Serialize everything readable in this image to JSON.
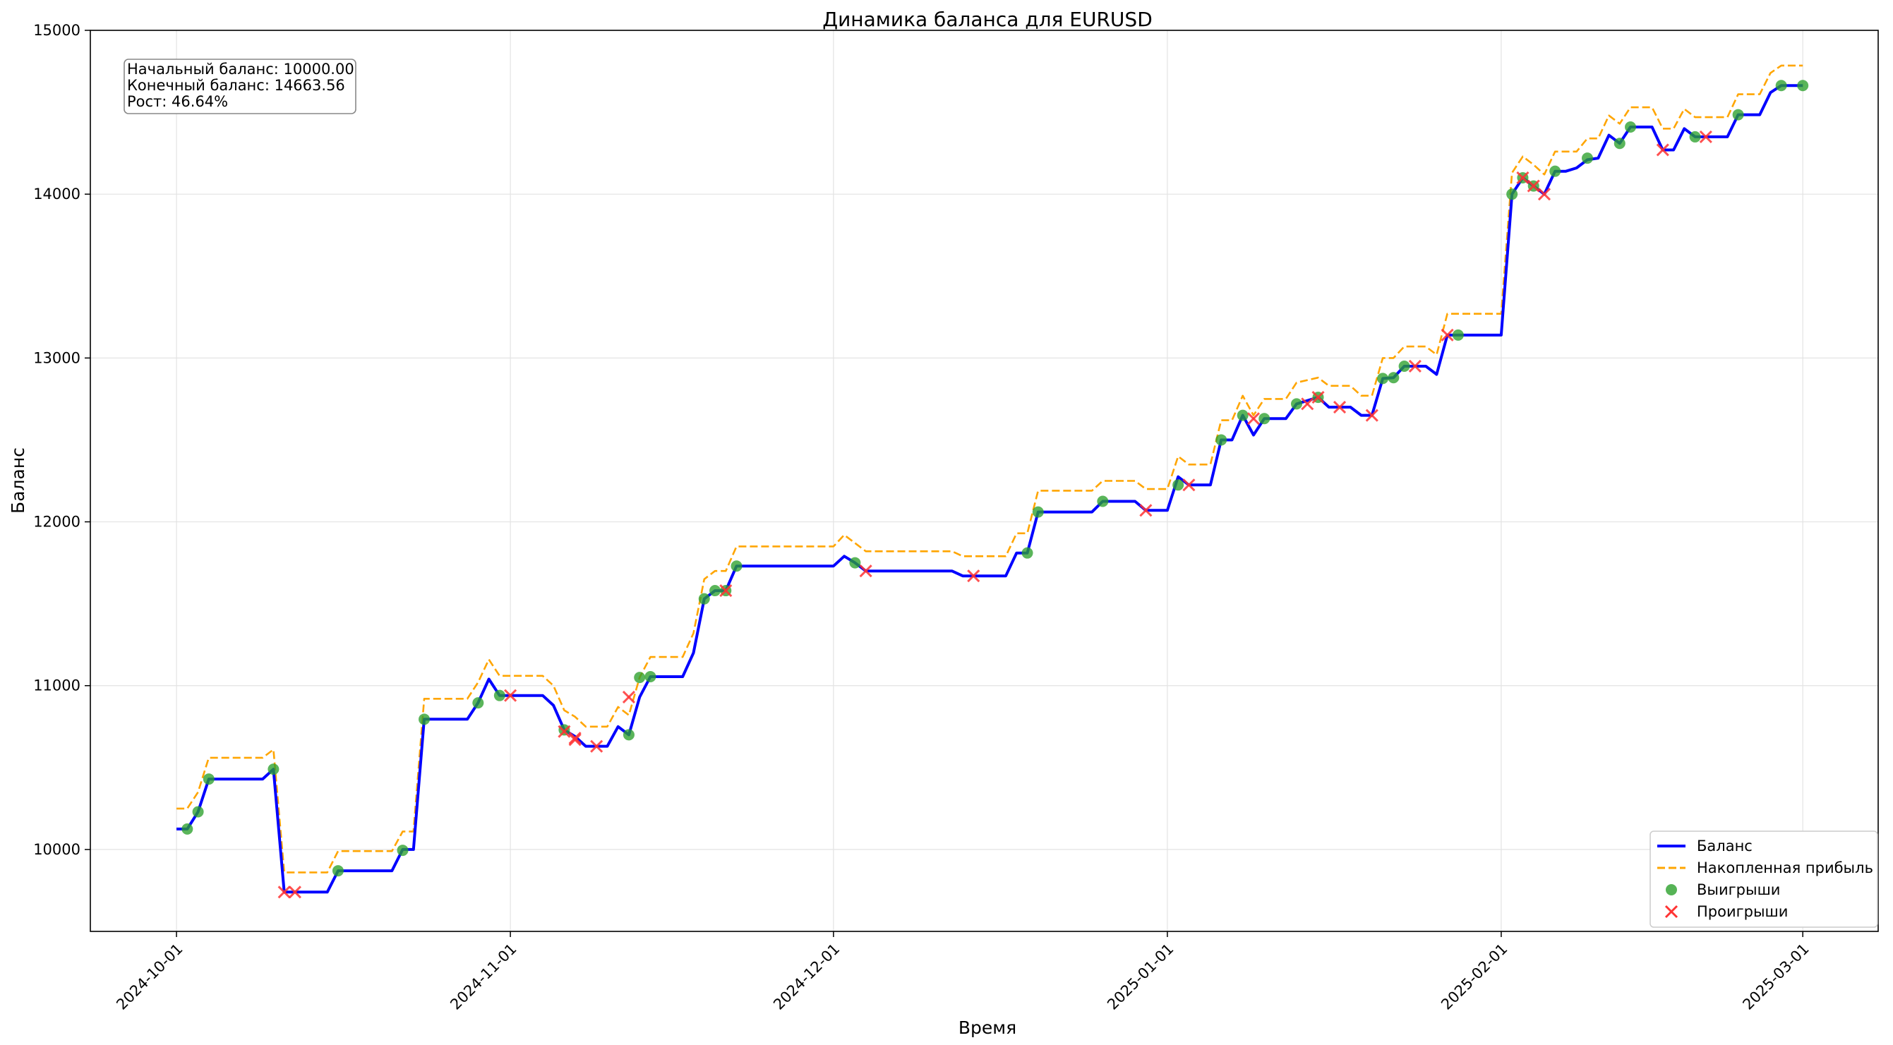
{
  "chart_data": {
    "type": "line",
    "title": "Динамика баланса для EURUSD",
    "xlabel": "Время",
    "ylabel": "Баланс",
    "x_range": [
      "2024-09-23",
      "2025-03-08"
    ],
    "ylim": [
      9500,
      15000
    ],
    "x_ticks": [
      "2024-10-01",
      "2024-11-01",
      "2024-12-01",
      "2025-01-01",
      "2025-02-01",
      "2025-03-01"
    ],
    "y_ticks": [
      10000,
      11000,
      12000,
      13000,
      14000,
      15000
    ],
    "grid": true,
    "legend_position": "bottom-right",
    "info_box": [
      "Начальный баланс: 10000.00",
      "Конечный баланс: 14663.56",
      "Рост: 46.64%"
    ],
    "colors": {
      "balance": "#0000ff",
      "cumulative": "#ffa500",
      "wins": "#2ca02c",
      "losses": "#ff3333"
    },
    "series": [
      {
        "name": "Баланс",
        "style": "solid",
        "points": [
          [
            "2024-10-01",
            10125
          ],
          [
            "2024-10-02",
            10125
          ],
          [
            "2024-10-03",
            10230
          ],
          [
            "2024-10-04",
            10430
          ],
          [
            "2024-10-09",
            10430
          ],
          [
            "2024-10-10",
            10490
          ],
          [
            "2024-10-11",
            9740
          ],
          [
            "2024-10-15",
            9740
          ],
          [
            "2024-10-16",
            9870
          ],
          [
            "2024-10-21",
            9870
          ],
          [
            "2024-10-22",
            10000
          ],
          [
            "2024-10-23",
            10000
          ],
          [
            "2024-10-24",
            10795
          ],
          [
            "2024-10-28",
            10795
          ],
          [
            "2024-10-29",
            10895
          ],
          [
            "2024-10-30",
            11040
          ],
          [
            "2024-10-31",
            10940
          ],
          [
            "2024-11-04",
            10940
          ],
          [
            "2024-11-05",
            10880
          ],
          [
            "2024-11-06",
            10730
          ],
          [
            "2024-11-07",
            10690
          ],
          [
            "2024-11-08",
            10630
          ],
          [
            "2024-11-09",
            10630
          ],
          [
            "2024-11-10",
            10630
          ],
          [
            "2024-11-11",
            10750
          ],
          [
            "2024-11-12",
            10700
          ],
          [
            "2024-11-13",
            10930
          ],
          [
            "2024-11-14",
            11055
          ],
          [
            "2024-11-17",
            11055
          ],
          [
            "2024-11-18",
            11200
          ],
          [
            "2024-11-19",
            11530
          ],
          [
            "2024-11-20",
            11580
          ],
          [
            "2024-11-21",
            11580
          ],
          [
            "2024-11-22",
            11730
          ],
          [
            "2024-12-01",
            11730
          ],
          [
            "2024-12-02",
            11790
          ],
          [
            "2024-12-03",
            11750
          ],
          [
            "2024-12-04",
            11700
          ],
          [
            "2024-12-12",
            11700
          ],
          [
            "2024-12-13",
            11670
          ],
          [
            "2024-12-17",
            11670
          ],
          [
            "2024-12-18",
            11810
          ],
          [
            "2024-12-19",
            11810
          ],
          [
            "2024-12-20",
            12060
          ],
          [
            "2024-12-25",
            12060
          ],
          [
            "2024-12-26",
            12125
          ],
          [
            "2024-12-29",
            12125
          ],
          [
            "2024-12-30",
            12070
          ],
          [
            "2025-01-01",
            12070
          ],
          [
            "2025-01-02",
            12275
          ],
          [
            "2025-01-03",
            12225
          ],
          [
            "2025-01-05",
            12225
          ],
          [
            "2025-01-06",
            12500
          ],
          [
            "2025-01-07",
            12500
          ],
          [
            "2025-01-08",
            12650
          ],
          [
            "2025-01-09",
            12530
          ],
          [
            "2025-01-10",
            12630
          ],
          [
            "2025-01-12",
            12630
          ],
          [
            "2025-01-13",
            12720
          ],
          [
            "2025-01-15",
            12760
          ],
          [
            "2025-01-16",
            12700
          ],
          [
            "2025-01-18",
            12700
          ],
          [
            "2025-01-19",
            12650
          ],
          [
            "2025-01-20",
            12650
          ],
          [
            "2025-01-21",
            12875
          ],
          [
            "2025-01-22",
            12880
          ],
          [
            "2025-01-23",
            12950
          ],
          [
            "2025-01-25",
            12950
          ],
          [
            "2025-01-26",
            12900
          ],
          [
            "2025-01-27",
            13140
          ],
          [
            "2025-02-01",
            13140
          ],
          [
            "2025-02-02",
            14000
          ],
          [
            "2025-02-03",
            14100
          ],
          [
            "2025-02-04",
            14050
          ],
          [
            "2025-02-05",
            14000
          ],
          [
            "2025-02-06",
            14140
          ],
          [
            "2025-02-07",
            14140
          ],
          [
            "2025-02-08",
            14160
          ],
          [
            "2025-02-09",
            14210
          ],
          [
            "2025-02-10",
            14220
          ],
          [
            "2025-02-11",
            14360
          ],
          [
            "2025-02-12",
            14310
          ],
          [
            "2025-02-13",
            14410
          ],
          [
            "2025-02-15",
            14410
          ],
          [
            "2025-02-16",
            14270
          ],
          [
            "2025-02-17",
            14270
          ],
          [
            "2025-02-18",
            14400
          ],
          [
            "2025-02-19",
            14350
          ],
          [
            "2025-02-22",
            14350
          ],
          [
            "2025-02-23",
            14485
          ],
          [
            "2025-02-25",
            14485
          ],
          [
            "2025-02-26",
            14620
          ],
          [
            "2025-02-27",
            14663
          ],
          [
            "2025-03-01",
            14663
          ]
        ]
      },
      {
        "name": "Накопленная прибыль",
        "style": "dashed",
        "points": [
          [
            "2024-10-01",
            10250
          ],
          [
            "2024-10-02",
            10250
          ],
          [
            "2024-10-03",
            10350
          ],
          [
            "2024-10-04",
            10560
          ],
          [
            "2024-10-09",
            10560
          ],
          [
            "2024-10-10",
            10610
          ],
          [
            "2024-10-11",
            9860
          ],
          [
            "2024-10-15",
            9860
          ],
          [
            "2024-10-16",
            9990
          ],
          [
            "2024-10-21",
            9990
          ],
          [
            "2024-10-22",
            10110
          ],
          [
            "2024-10-23",
            10110
          ],
          [
            "2024-10-24",
            10920
          ],
          [
            "2024-10-28",
            10920
          ],
          [
            "2024-10-29",
            11020
          ],
          [
            "2024-10-30",
            11160
          ],
          [
            "2024-10-31",
            11060
          ],
          [
            "2024-11-04",
            11060
          ],
          [
            "2024-11-05",
            11000
          ],
          [
            "2024-11-06",
            10850
          ],
          [
            "2024-11-07",
            10810
          ],
          [
            "2024-11-08",
            10750
          ],
          [
            "2024-11-10",
            10750
          ],
          [
            "2024-11-11",
            10870
          ],
          [
            "2024-11-12",
            10820
          ],
          [
            "2024-11-13",
            11050
          ],
          [
            "2024-11-14",
            11175
          ],
          [
            "2024-11-17",
            11175
          ],
          [
            "2024-11-18",
            11320
          ],
          [
            "2024-11-19",
            11650
          ],
          [
            "2024-11-20",
            11700
          ],
          [
            "2024-11-21",
            11700
          ],
          [
            "2024-11-22",
            11850
          ],
          [
            "2024-12-01",
            11850
          ],
          [
            "2024-12-02",
            11920
          ],
          [
            "2024-12-03",
            11870
          ],
          [
            "2024-12-04",
            11820
          ],
          [
            "2024-12-12",
            11820
          ],
          [
            "2024-12-13",
            11790
          ],
          [
            "2024-12-17",
            11790
          ],
          [
            "2024-12-18",
            11930
          ],
          [
            "2024-12-19",
            11930
          ],
          [
            "2024-12-20",
            12190
          ],
          [
            "2024-12-25",
            12190
          ],
          [
            "2024-12-26",
            12250
          ],
          [
            "2024-12-29",
            12250
          ],
          [
            "2024-12-30",
            12200
          ],
          [
            "2025-01-01",
            12200
          ],
          [
            "2025-01-02",
            12400
          ],
          [
            "2025-01-03",
            12350
          ],
          [
            "2025-01-05",
            12350
          ],
          [
            "2025-01-06",
            12620
          ],
          [
            "2025-01-07",
            12620
          ],
          [
            "2025-01-08",
            12770
          ],
          [
            "2025-01-09",
            12650
          ],
          [
            "2025-01-10",
            12750
          ],
          [
            "2025-01-12",
            12750
          ],
          [
            "2025-01-13",
            12850
          ],
          [
            "2025-01-15",
            12880
          ],
          [
            "2025-01-16",
            12830
          ],
          [
            "2025-01-18",
            12830
          ],
          [
            "2025-01-19",
            12770
          ],
          [
            "2025-01-20",
            12770
          ],
          [
            "2025-01-21",
            13000
          ],
          [
            "2025-01-22",
            13000
          ],
          [
            "2025-01-23",
            13070
          ],
          [
            "2025-01-25",
            13070
          ],
          [
            "2025-01-26",
            13020
          ],
          [
            "2025-01-27",
            13270
          ],
          [
            "2025-02-01",
            13270
          ],
          [
            "2025-02-02",
            14130
          ],
          [
            "2025-02-03",
            14230
          ],
          [
            "2025-02-04",
            14180
          ],
          [
            "2025-02-05",
            14120
          ],
          [
            "2025-02-06",
            14260
          ],
          [
            "2025-02-08",
            14260
          ],
          [
            "2025-02-09",
            14340
          ],
          [
            "2025-02-10",
            14340
          ],
          [
            "2025-02-11",
            14480
          ],
          [
            "2025-02-12",
            14430
          ],
          [
            "2025-02-13",
            14530
          ],
          [
            "2025-02-15",
            14530
          ],
          [
            "2025-02-16",
            14400
          ],
          [
            "2025-02-17",
            14400
          ],
          [
            "2025-02-18",
            14520
          ],
          [
            "2025-02-19",
            14470
          ],
          [
            "2025-02-22",
            14470
          ],
          [
            "2025-02-23",
            14610
          ],
          [
            "2025-02-25",
            14610
          ],
          [
            "2025-02-26",
            14740
          ],
          [
            "2025-02-27",
            14785
          ],
          [
            "2025-03-01",
            14785
          ]
        ]
      },
      {
        "name": "Выигрыши",
        "style": "marker-circle",
        "points": [
          [
            "2024-10-02",
            10125
          ],
          [
            "2024-10-03",
            10230
          ],
          [
            "2024-10-04",
            10430
          ],
          [
            "2024-10-10",
            10490
          ],
          [
            "2024-10-16",
            9870
          ],
          [
            "2024-10-22",
            9995
          ],
          [
            "2024-10-24",
            10795
          ],
          [
            "2024-10-29",
            10895
          ],
          [
            "2024-10-31",
            10940
          ],
          [
            "2024-11-06",
            10730
          ],
          [
            "2024-11-12",
            10700
          ],
          [
            "2024-11-13",
            11050
          ],
          [
            "2024-11-14",
            11055
          ],
          [
            "2024-11-19",
            11530
          ],
          [
            "2024-11-20",
            11580
          ],
          [
            "2024-11-21",
            11580
          ],
          [
            "2024-11-22",
            11730
          ],
          [
            "2024-12-03",
            11750
          ],
          [
            "2024-12-19",
            11810
          ],
          [
            "2024-12-20",
            12060
          ],
          [
            "2024-12-26",
            12125
          ],
          [
            "2025-01-02",
            12225
          ],
          [
            "2025-01-06",
            12500
          ],
          [
            "2025-01-08",
            12650
          ],
          [
            "2025-01-10",
            12630
          ],
          [
            "2025-01-13",
            12720
          ],
          [
            "2025-01-15",
            12760
          ],
          [
            "2025-01-21",
            12875
          ],
          [
            "2025-01-22",
            12880
          ],
          [
            "2025-01-23",
            12950
          ],
          [
            "2025-01-28",
            13140
          ],
          [
            "2025-02-02",
            14000
          ],
          [
            "2025-02-03",
            14100
          ],
          [
            "2025-02-04",
            14050
          ],
          [
            "2025-02-06",
            14140
          ],
          [
            "2025-02-09",
            14220
          ],
          [
            "2025-02-12",
            14310
          ],
          [
            "2025-02-13",
            14410
          ],
          [
            "2025-02-19",
            14350
          ],
          [
            "2025-02-23",
            14485
          ],
          [
            "2025-02-27",
            14663
          ],
          [
            "2025-03-01",
            14663
          ]
        ]
      },
      {
        "name": "Проигрыши",
        "style": "marker-x",
        "points": [
          [
            "2024-10-11",
            9740
          ],
          [
            "2024-10-12",
            9740
          ],
          [
            "2024-11-01",
            10940
          ],
          [
            "2024-11-06",
            10720
          ],
          [
            "2024-11-07",
            10680
          ],
          [
            "2024-11-07",
            10670
          ],
          [
            "2024-11-09",
            10630
          ],
          [
            "2024-11-12",
            10930
          ],
          [
            "2024-11-21",
            11580
          ],
          [
            "2024-12-04",
            11700
          ],
          [
            "2024-12-14",
            11670
          ],
          [
            "2024-12-30",
            12070
          ],
          [
            "2025-01-03",
            12225
          ],
          [
            "2025-01-09",
            12630
          ],
          [
            "2025-01-14",
            12720
          ],
          [
            "2025-01-15",
            12760
          ],
          [
            "2025-01-17",
            12700
          ],
          [
            "2025-01-20",
            12650
          ],
          [
            "2025-01-24",
            12950
          ],
          [
            "2025-01-27",
            13140
          ],
          [
            "2025-02-03",
            14100
          ],
          [
            "2025-02-04",
            14050
          ],
          [
            "2025-02-05",
            14000
          ],
          [
            "2025-02-16",
            14270
          ],
          [
            "2025-02-20",
            14350
          ]
        ]
      }
    ]
  }
}
